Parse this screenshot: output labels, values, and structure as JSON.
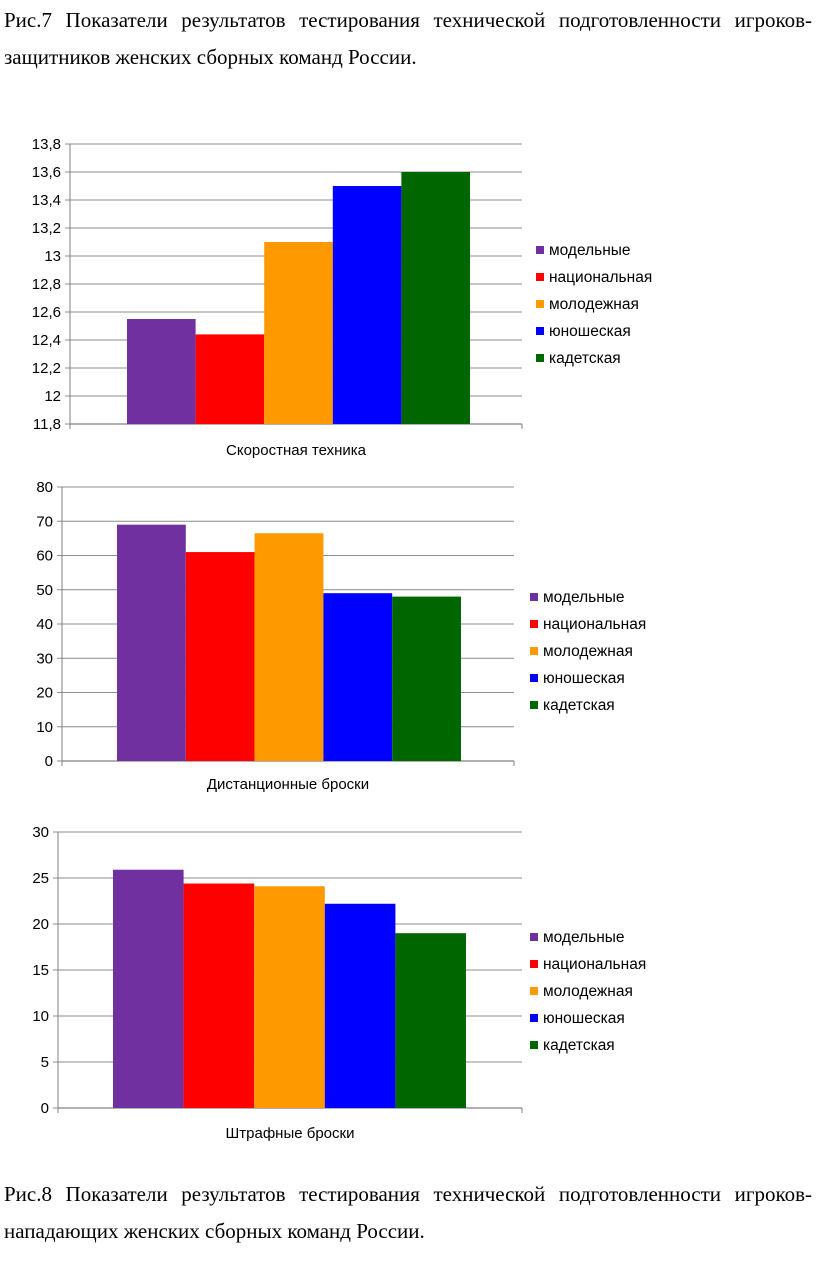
{
  "captions": {
    "top": "Рис.7 Показатели результатов тестирования технической подготовленности игроков-защитников женских сборных команд России.",
    "bottom": "Рис.8 Показатели результатов тестирования технической подготовленности игроков-нападающих женских сборных команд России."
  },
  "series_colors": {
    "модельные": "#7030a0",
    "национальная": "#ff0000",
    "молодежная": "#ff9900",
    "юношеская": "#0000ff",
    "кадетская": "#006600"
  },
  "chart_data": [
    {
      "type": "bar",
      "title": "",
      "xlabel": "Скоростная техника",
      "ylabel": "",
      "ylim": [
        11.8,
        13.8
      ],
      "ytick_step": 0.2,
      "yticks": [
        "11,8",
        "12",
        "12,2",
        "12,4",
        "12,6",
        "12,8",
        "13",
        "13,2",
        "13,4",
        "13,6",
        "13,8"
      ],
      "grid": true,
      "legend_position": "right",
      "series": [
        {
          "name": "модельные",
          "value": 12.55
        },
        {
          "name": "национальная",
          "value": 12.44
        },
        {
          "name": "молодежная",
          "value": 13.1
        },
        {
          "name": "юношеская",
          "value": 13.5
        },
        {
          "name": "кадетская",
          "value": 13.6
        }
      ]
    },
    {
      "type": "bar",
      "title": "",
      "xlabel": "Дистанционные броски",
      "ylabel": "",
      "ylim": [
        0,
        80
      ],
      "ytick_step": 10,
      "yticks": [
        "0",
        "10",
        "20",
        "30",
        "40",
        "50",
        "60",
        "70",
        "80"
      ],
      "grid": true,
      "legend_position": "right",
      "series": [
        {
          "name": "модельные",
          "value": 69
        },
        {
          "name": "национальная",
          "value": 61
        },
        {
          "name": "молодежная",
          "value": 66.5
        },
        {
          "name": "юношеская",
          "value": 49
        },
        {
          "name": "кадетская",
          "value": 48
        }
      ]
    },
    {
      "type": "bar",
      "title": "",
      "xlabel": "Штрафные броски",
      "ylabel": "",
      "ylim": [
        0,
        30
      ],
      "ytick_step": 5,
      "yticks": [
        "0",
        "5",
        "10",
        "15",
        "20",
        "25",
        "30"
      ],
      "grid": true,
      "legend_position": "right",
      "series": [
        {
          "name": "модельные",
          "value": 25.9
        },
        {
          "name": "национальная",
          "value": 24.4
        },
        {
          "name": "молодежная",
          "value": 24.1
        },
        {
          "name": "юношеская",
          "value": 22.2
        },
        {
          "name": "кадетская",
          "value": 19
        }
      ]
    }
  ]
}
